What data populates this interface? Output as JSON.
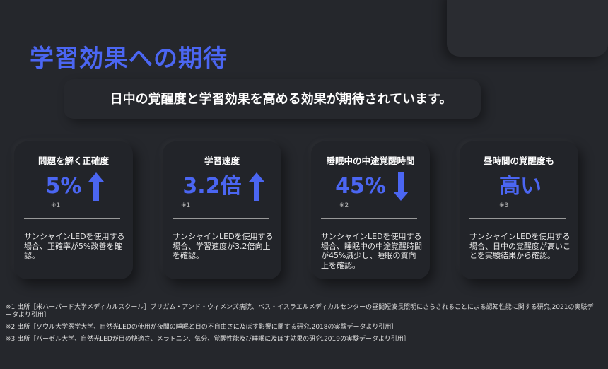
{
  "title": "学習効果への期待",
  "subtitle": "日中の覚醒度と学習効果を高める効果が期待されています。",
  "accent": "#4b66f2",
  "cards": [
    {
      "title": "問題を解く正確度",
      "value": "5%",
      "note": "※1",
      "arrow": "up",
      "desc": "サンシャインLEDを使用する場合、正確率が5%改善を確認。"
    },
    {
      "title": "学習速度",
      "value": "3.2倍",
      "note": "※1",
      "arrow": "up",
      "desc": "サンシャインLEDを使用する場合、学習速度が3.2倍向上を確認。"
    },
    {
      "title": "睡眠中の中途覚醒時間",
      "value": "45%",
      "note": "※2",
      "arrow": "down",
      "desc": "サンシャインLEDを使用する場合、睡眠中の中途覚醒時間が45%減少し、睡眠の質向上を確認。"
    },
    {
      "title": "昼時間の覚醒度も",
      "value": "高い",
      "note": "※3",
      "arrow": "none",
      "desc": "サンシャインLEDを使用する場合、日中の覚醒度が高いことを実験結果から確認。"
    }
  ],
  "footnotes": [
    "※1 出所［米ハーバード大学メディカルスクール］ブリガム・アンド・ウィメンズ病院、ベス・イスラエルメディカルセンターの昼間短波長照明にさらされることによる認知性能に関する研究,2021の実験データより引用］",
    "※2 出所［ソウル大学医学大学、自然光LEDの使用が夜間の睡眠と目の不自由さに及ぼす影響に関する研究,2018の実験データより引用］",
    "※3 出所［バーゼル大学、自然光LEDが目の快適さ、メラトニン、気分、覚醒性能及び睡眠に及ぼす効果の研究,2019の実験データより引用］"
  ]
}
